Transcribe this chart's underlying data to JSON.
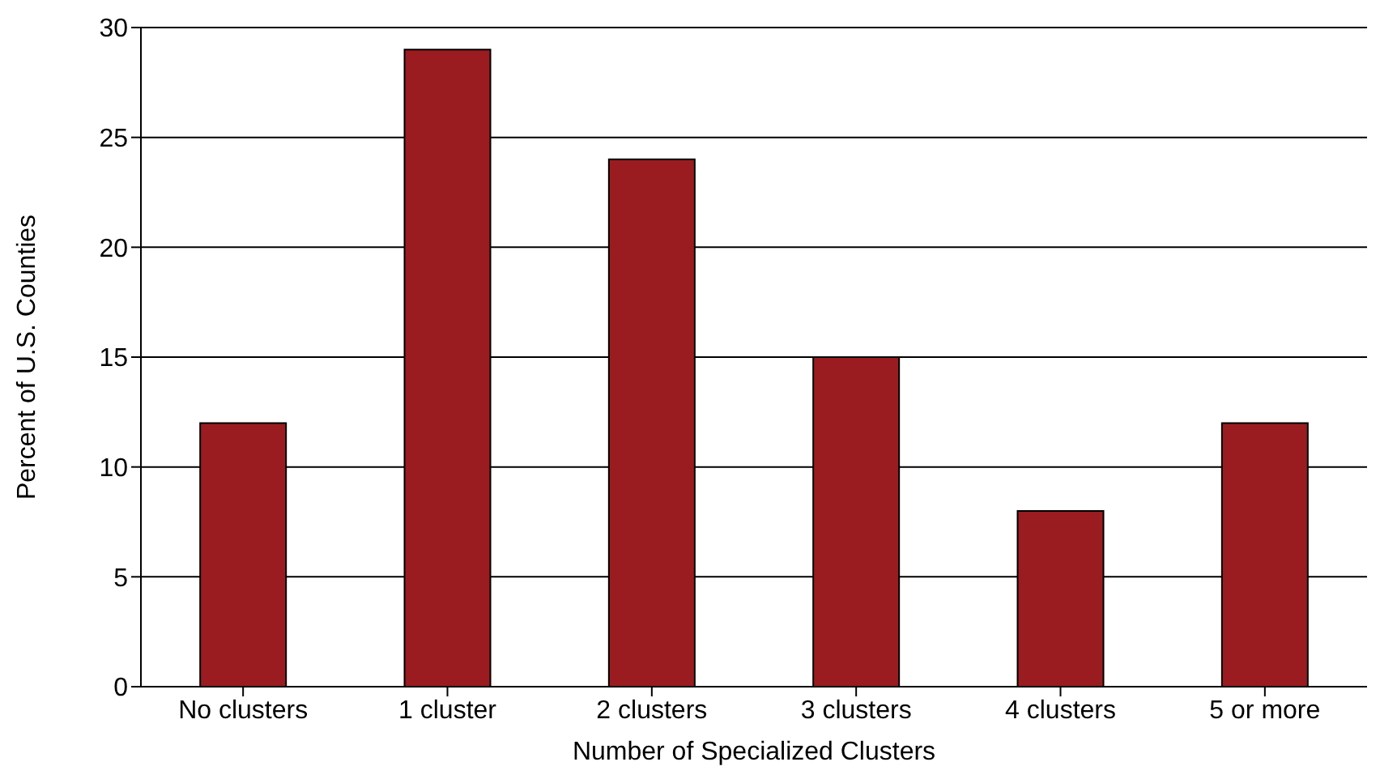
{
  "chart_data": {
    "type": "bar",
    "xlabel": "Number of Specialized Clusters",
    "ylabel": "Percent of U.S. Counties",
    "categories": [
      "No clusters",
      "1 cluster",
      "2 clusters",
      "3 clusters",
      "4 clusters",
      "5 or more"
    ],
    "values": [
      12,
      29,
      24,
      15,
      8,
      12
    ],
    "color": "#9b1c20",
    "ylim": [
      0,
      30
    ],
    "yticks": [
      0,
      5,
      10,
      15,
      20,
      25,
      30
    ],
    "grid": "y"
  }
}
